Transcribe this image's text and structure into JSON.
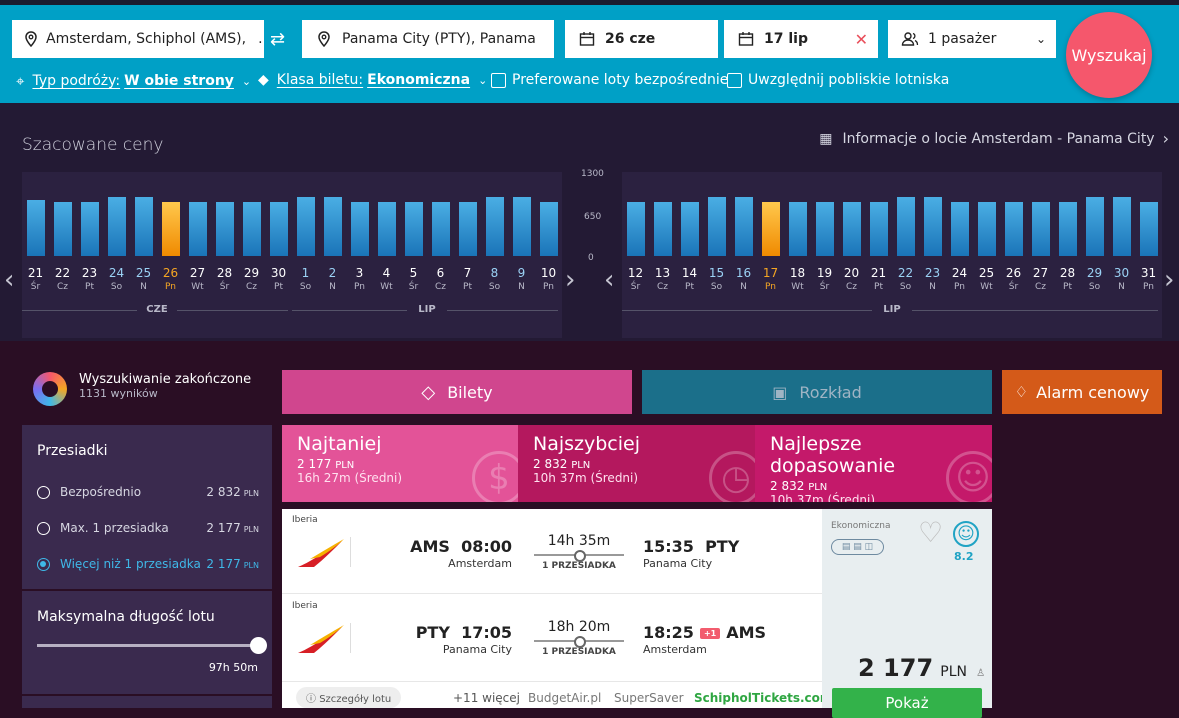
{
  "search": {
    "from": "Amsterdam, Schiphol (AMS),",
    "from_more": "...",
    "to": "Panama City (PTY), Panama",
    "depart_date": "26 cze",
    "return_date": "17 lip",
    "passengers": "1 pasażer",
    "search_button": "Wyszukaj",
    "trip_type_label": "Typ podróży:",
    "trip_type_value": "W obie strony",
    "class_label": "Klasa biletu:",
    "class_value": "Ekonomiczna",
    "direct_flights": "Preferowane loty bezpośrednie",
    "nearby_airports": "Uwzględnij pobliskie lotniska"
  },
  "calendar": {
    "title": "Szacowane ceny",
    "info_link": "Informacje o locie Amsterdam - Panama City",
    "y_ticks": [
      "1300",
      "650",
      "0"
    ],
    "outbound": {
      "selected": "26",
      "months": [
        "CZE",
        "LIP"
      ],
      "days": [
        {
          "d": "21",
          "w": "Śr",
          "v": 880
        },
        {
          "d": "22",
          "w": "Cz",
          "v": 860
        },
        {
          "d": "23",
          "w": "Pt",
          "v": 860
        },
        {
          "d": "24",
          "w": "So",
          "v": 930
        },
        {
          "d": "25",
          "w": "N",
          "v": 930
        },
        {
          "d": "26",
          "w": "Pn",
          "v": 860
        },
        {
          "d": "27",
          "w": "Wt",
          "v": 860
        },
        {
          "d": "28",
          "w": "Śr",
          "v": 860
        },
        {
          "d": "29",
          "w": "Cz",
          "v": 860
        },
        {
          "d": "30",
          "w": "Pt",
          "v": 860
        },
        {
          "d": "1",
          "w": "So",
          "v": 930
        },
        {
          "d": "2",
          "w": "N",
          "v": 930
        },
        {
          "d": "3",
          "w": "Pn",
          "v": 860
        },
        {
          "d": "4",
          "w": "Wt",
          "v": 860
        },
        {
          "d": "5",
          "w": "Śr",
          "v": 860
        },
        {
          "d": "6",
          "w": "Cz",
          "v": 860
        },
        {
          "d": "7",
          "w": "Pt",
          "v": 860
        },
        {
          "d": "8",
          "w": "So",
          "v": 930
        },
        {
          "d": "9",
          "w": "N",
          "v": 930
        },
        {
          "d": "10",
          "w": "Pn",
          "v": 860
        }
      ]
    },
    "inbound": {
      "selected": "17",
      "months": [
        "LIP"
      ],
      "days": [
        {
          "d": "12",
          "w": "Śr",
          "v": 860
        },
        {
          "d": "13",
          "w": "Cz",
          "v": 860
        },
        {
          "d": "14",
          "w": "Pt",
          "v": 860
        },
        {
          "d": "15",
          "w": "So",
          "v": 930
        },
        {
          "d": "16",
          "w": "N",
          "v": 930
        },
        {
          "d": "17",
          "w": "Pn",
          "v": 860
        },
        {
          "d": "18",
          "w": "Wt",
          "v": 860
        },
        {
          "d": "19",
          "w": "Śr",
          "v": 860
        },
        {
          "d": "20",
          "w": "Cz",
          "v": 860
        },
        {
          "d": "21",
          "w": "Pt",
          "v": 860
        },
        {
          "d": "22",
          "w": "So",
          "v": 930
        },
        {
          "d": "23",
          "w": "N",
          "v": 930
        },
        {
          "d": "24",
          "w": "Pn",
          "v": 860
        },
        {
          "d": "25",
          "w": "Wt",
          "v": 860
        },
        {
          "d": "26",
          "w": "Śr",
          "v": 860
        },
        {
          "d": "27",
          "w": "Cz",
          "v": 860
        },
        {
          "d": "28",
          "w": "Pt",
          "v": 860
        },
        {
          "d": "29",
          "w": "So",
          "v": 930
        },
        {
          "d": "30",
          "w": "N",
          "v": 930
        },
        {
          "d": "31",
          "w": "Pn",
          "v": 860
        }
      ]
    }
  },
  "status": {
    "title": "Wyszukiwanie zakończone",
    "count": "1131",
    "count_label": "wyników"
  },
  "filters": {
    "stops_title": "Przesiadki",
    "stops": [
      {
        "label": "Bezpośrednio",
        "price": "2 832",
        "cur": "PLN",
        "selected": false
      },
      {
        "label": "Max. 1 przesiadka",
        "price": "2 177",
        "cur": "PLN",
        "selected": false
      },
      {
        "label": "Więcej niż 1 przesiadka",
        "price": "2 177",
        "cur": "PLN",
        "selected": true
      }
    ],
    "duration_title": "Maksymalna długość lotu",
    "duration_value": "97h 50m"
  },
  "tabs": {
    "tickets": "Bilety",
    "schedule": "Rozkład",
    "alert": "Alarm cenowy"
  },
  "sort": [
    {
      "title": "Najtaniej",
      "price": "2 177",
      "cur": "PLN",
      "dur": "16h 27m (Średni)",
      "bg": "$"
    },
    {
      "title": "Najszybciej",
      "price": "2 832",
      "cur": "PLN",
      "dur": "10h 37m (Średni)",
      "bg": "◷"
    },
    {
      "title": "Najlepsze dopasowanie",
      "price": "2 832",
      "cur": "PLN",
      "dur": "10h 37m (Średni)",
      "bg": "☺"
    }
  ],
  "result": {
    "outbound": {
      "airline": "Iberia",
      "dep_code": "AMS",
      "dep_time": "08:00",
      "dep_city": "Amsterdam",
      "duration": "14h 35m",
      "stops": "1 PRZESIADKA",
      "arr_time": "15:35",
      "arr_code": "PTY",
      "arr_city": "Panama City",
      "plus": ""
    },
    "inbound": {
      "airline": "Iberia",
      "dep_code": "PTY",
      "dep_time": "17:05",
      "dep_city": "Panama City",
      "duration": "18h 20m",
      "stops": "1 PRZESIADKA",
      "arr_time": "18:25",
      "arr_code": "AMS",
      "arr_city": "Amsterdam",
      "plus": "+1"
    },
    "cabin": "Ekonomiczna",
    "score": "8.2",
    "price": "2 177",
    "cur": "PLN",
    "details": "Szczegóły lotu",
    "more": "+11 więcej",
    "providers": [
      "BudgetAir.pl",
      "SuperSaver",
      "SchipholTickets.com"
    ],
    "show": "Pokaż"
  },
  "colors": {
    "topbar": "#00a0c6",
    "search": "#f5576c",
    "tickets": "#d0468e",
    "schedule": "#1b6f8a",
    "alert": "#d45a19"
  }
}
